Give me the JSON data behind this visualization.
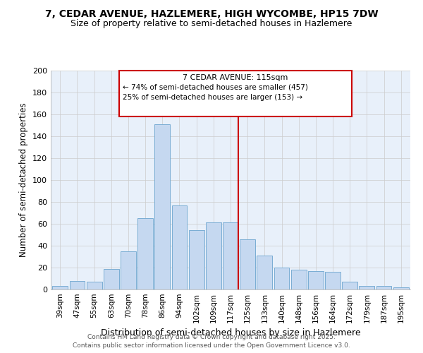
{
  "title1": "7, CEDAR AVENUE, HAZLEMERE, HIGH WYCOMBE, HP15 7DW",
  "title2": "Size of property relative to semi-detached houses in Hazlemere",
  "xlabel": "Distribution of semi-detached houses by size in Hazlemere",
  "ylabel": "Number of semi-detached properties",
  "bar_labels": [
    "39sqm",
    "47sqm",
    "55sqm",
    "63sqm",
    "70sqm",
    "78sqm",
    "86sqm",
    "94sqm",
    "102sqm",
    "109sqm",
    "117sqm",
    "125sqm",
    "133sqm",
    "140sqm",
    "148sqm",
    "156sqm",
    "164sqm",
    "172sqm",
    "179sqm",
    "187sqm",
    "195sqm"
  ],
  "bar_heights": [
    3,
    8,
    7,
    19,
    35,
    65,
    151,
    77,
    54,
    61,
    61,
    46,
    31,
    20,
    18,
    17,
    16,
    7,
    3,
    3,
    2
  ],
  "bar_color": "#c5d8f0",
  "bar_edge_color": "#7aadd4",
  "grid_color": "#cccccc",
  "background_color": "#e8f0fa",
  "vline_x_index": 10,
  "vline_color": "#cc0000",
  "annotation_title": "7 CEDAR AVENUE: 115sqm",
  "annotation_line1": "← 74% of semi-detached houses are smaller (457)",
  "annotation_line2": "25% of semi-detached houses are larger (153) →",
  "annotation_box_color": "#cc0000",
  "footer1": "Contains HM Land Registry data © Crown copyright and database right 2025.",
  "footer2": "Contains public sector information licensed under the Open Government Licence v3.0.",
  "ylim": [
    0,
    200
  ],
  "yticks": [
    0,
    20,
    40,
    60,
    80,
    100,
    120,
    140,
    160,
    180,
    200
  ]
}
